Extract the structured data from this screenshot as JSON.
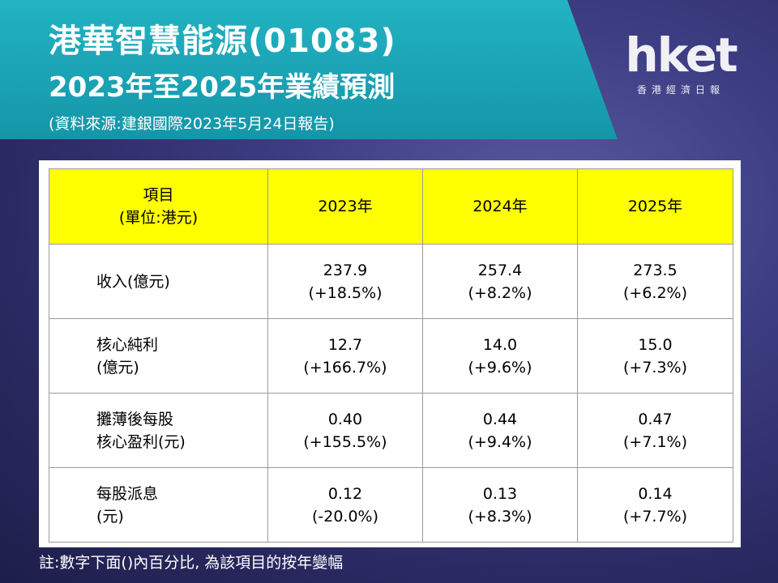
{
  "header": {
    "title": "港華智慧能源(01083)",
    "subtitle": "2023年至2025年業績預測",
    "source": "(資料來源:建銀國際2023年5月24日報告)"
  },
  "logo": {
    "main": "hket",
    "sub": "香港經濟日報"
  },
  "table": {
    "header": {
      "label_line1": "項目",
      "label_line2": "(單位:港元)",
      "years": [
        "2023年",
        "2024年",
        "2025年"
      ]
    },
    "rows": [
      {
        "label": [
          "收入(億元)",
          ""
        ],
        "cells": [
          {
            "value": "237.9",
            "change": "(+18.5%)"
          },
          {
            "value": "257.4",
            "change": "(+8.2%)"
          },
          {
            "value": "273.5",
            "change": "(+6.2%)"
          }
        ]
      },
      {
        "label": [
          "核心純利",
          "(億元)"
        ],
        "cells": [
          {
            "value": "12.7",
            "change": "(+166.7%)"
          },
          {
            "value": "14.0",
            "change": "(+9.6%)"
          },
          {
            "value": "15.0",
            "change": "(+7.3%)"
          }
        ]
      },
      {
        "label": [
          "攤薄後每股",
          "核心盈利(元)"
        ],
        "cells": [
          {
            "value": "0.40",
            "change": "(+155.5%)"
          },
          {
            "value": "0.44",
            "change": "(+9.4%)"
          },
          {
            "value": "0.47",
            "change": "(+7.1%)"
          }
        ]
      },
      {
        "label": [
          "每股派息",
          "(元)"
        ],
        "cells": [
          {
            "value": "0.12",
            "change": "(-20.0%)"
          },
          {
            "value": "0.13",
            "change": "(+8.3%)"
          },
          {
            "value": "0.14",
            "change": "(+7.7%)"
          }
        ]
      }
    ]
  },
  "note": "註:數字下面()內百分比, 為該項目的按年變幅",
  "colors": {
    "banner": "#1aa5b6",
    "header_fill": "#ffff00",
    "background": "#3c3c82"
  }
}
